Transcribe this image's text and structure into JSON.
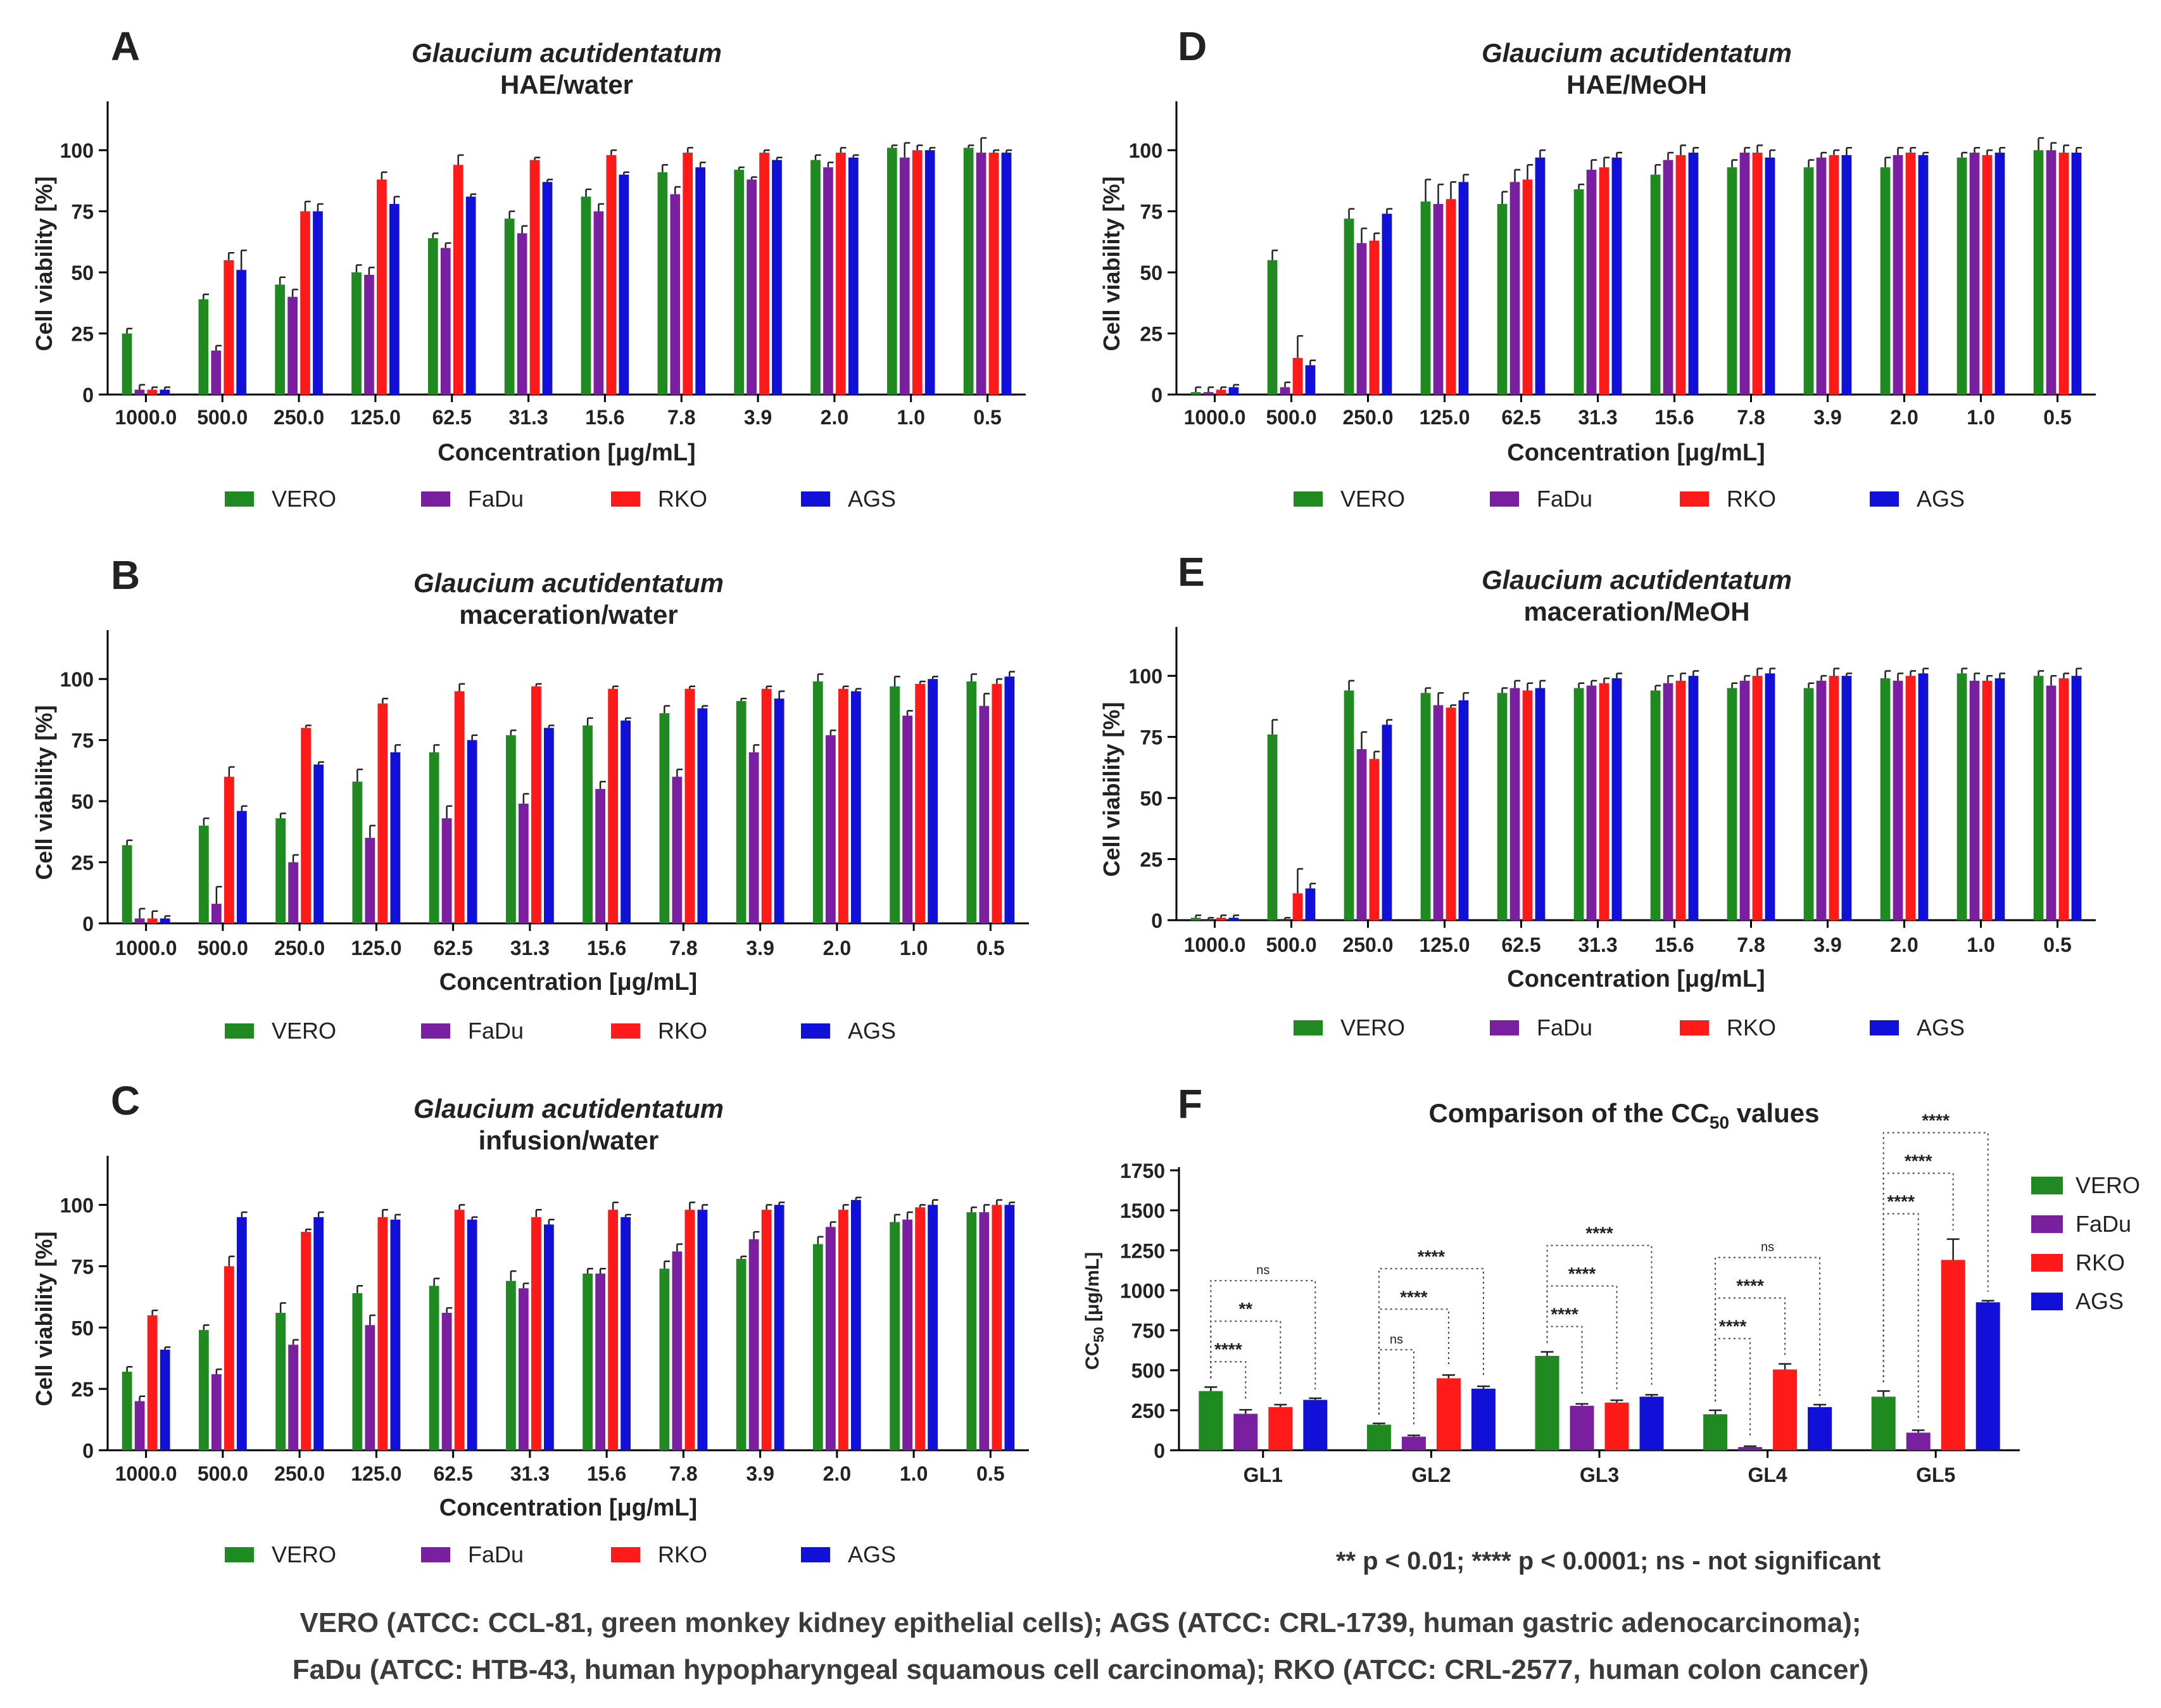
{
  "colors": {
    "VERO": "#1f8a1f",
    "FaDu": "#7a1fa0",
    "RKO": "#ff1a1a",
    "AGS": "#1010d8",
    "axis": "#000000",
    "text": "#222222"
  },
  "chart_data": [
    {
      "panel": "A",
      "type": "bar",
      "title": "Glaucium acutidentatum",
      "subtitle": "HAE/water",
      "xlabel": "Concentration [μg/mL]",
      "ylabel": "Cell viability [%]",
      "ylim": [
        0,
        120
      ],
      "yticks": [
        0,
        25,
        50,
        75,
        100
      ],
      "categories": [
        "1000.0",
        "500.0",
        "250.0",
        "125.0",
        "62.5",
        "31.3",
        "15.6",
        "7.8",
        "3.9",
        "2.0",
        "1.0",
        "0.5"
      ],
      "legend": [
        "VERO",
        "FaDu",
        "RKO",
        "AGS"
      ],
      "series": [
        {
          "name": "VERO",
          "values": [
            25,
            39,
            45,
            50,
            64,
            72,
            81,
            91,
            92,
            96,
            101,
            101
          ],
          "errors": [
            2,
            2,
            3,
            3,
            2,
            3,
            3,
            3,
            1,
            2,
            1,
            1
          ]
        },
        {
          "name": "FaDu",
          "values": [
            2,
            18,
            40,
            49,
            60,
            66,
            75,
            82,
            88,
            93,
            97,
            99
          ],
          "errors": [
            2,
            2,
            3,
            3,
            2,
            3,
            3,
            3,
            1,
            2,
            6,
            6
          ]
        },
        {
          "name": "RKO",
          "values": [
            2,
            55,
            75,
            88,
            94,
            96,
            98,
            99,
            99,
            99,
            100,
            99
          ],
          "errors": [
            1,
            3,
            4,
            3,
            4,
            1,
            2,
            2,
            1,
            2,
            2,
            1
          ]
        },
        {
          "name": "AGS",
          "values": [
            2,
            51,
            75,
            78,
            81,
            87,
            90,
            93,
            96,
            97,
            100,
            99
          ],
          "errors": [
            1,
            8,
            3,
            3,
            1,
            1,
            1,
            2,
            1,
            1,
            1,
            1
          ]
        }
      ]
    },
    {
      "panel": "B",
      "type": "bar",
      "title": "Glaucium acutidentatum",
      "subtitle": "maceration/water",
      "xlabel": "Concentration [μg/mL]",
      "ylabel": "Cell viability [%]",
      "ylim": [
        0,
        120
      ],
      "yticks": [
        0,
        25,
        50,
        75,
        100
      ],
      "categories": [
        "1000.0",
        "500.0",
        "250.0",
        "125.0",
        "62.5",
        "31.3",
        "15.6",
        "7.8",
        "3.9",
        "2.0",
        "1.0",
        "0.5"
      ],
      "legend": [
        "VERO",
        "FaDu",
        "RKO",
        "AGS"
      ],
      "series": [
        {
          "name": "VERO",
          "values": [
            32,
            40,
            43,
            58,
            70,
            77,
            81,
            86,
            91,
            99,
            97,
            99
          ],
          "errors": [
            2,
            3,
            2,
            5,
            3,
            2,
            3,
            3,
            1,
            3,
            4,
            3
          ]
        },
        {
          "name": "FaDu",
          "values": [
            2,
            8,
            25,
            35,
            43,
            49,
            55,
            60,
            70,
            77,
            85,
            89
          ],
          "errors": [
            4,
            7,
            3,
            5,
            5,
            4,
            3,
            3,
            3,
            2,
            2,
            5
          ]
        },
        {
          "name": "RKO",
          "values": [
            2,
            60,
            80,
            90,
            95,
            97,
            96,
            96,
            96,
            96,
            98,
            98
          ],
          "errors": [
            3,
            4,
            1,
            2,
            3,
            1,
            1,
            1,
            1,
            1,
            1,
            2
          ]
        },
        {
          "name": "AGS",
          "values": [
            2,
            46,
            65,
            70,
            75,
            80,
            83,
            88,
            92,
            95,
            100,
            101
          ],
          "errors": [
            1,
            2,
            1,
            3,
            2,
            1,
            1,
            1,
            3,
            1,
            1,
            2
          ]
        }
      ]
    },
    {
      "panel": "C",
      "type": "bar",
      "title": "Glaucium acutidentatum",
      "subtitle": "infusion/water",
      "xlabel": "Concentration [μg/mL]",
      "ylabel": "Cell viability [%]",
      "ylim": [
        0,
        120
      ],
      "yticks": [
        0,
        25,
        50,
        75,
        100
      ],
      "categories": [
        "1000.0",
        "500.0",
        "250.0",
        "125.0",
        "62.5",
        "31.3",
        "15.6",
        "7.8",
        "3.9",
        "2.0",
        "1.0",
        "0.5"
      ],
      "legend": [
        "VERO",
        "FaDu",
        "RKO",
        "AGS"
      ],
      "series": [
        {
          "name": "VERO",
          "values": [
            32,
            49,
            56,
            64,
            67,
            69,
            72,
            74,
            78,
            84,
            93,
            97
          ],
          "errors": [
            2,
            2,
            4,
            3,
            3,
            4,
            2,
            3,
            1,
            3,
            3,
            2
          ]
        },
        {
          "name": "FaDu",
          "values": [
            20,
            31,
            43,
            51,
            56,
            66,
            72,
            81,
            86,
            91,
            94,
            97
          ],
          "errors": [
            2,
            2,
            2,
            4,
            2,
            2,
            2,
            3,
            3,
            2,
            3,
            3
          ]
        },
        {
          "name": "RKO",
          "values": [
            55,
            75,
            89,
            95,
            98,
            95,
            98,
            98,
            98,
            98,
            99,
            100
          ],
          "errors": [
            2,
            4,
            1,
            3,
            2,
            3,
            3,
            3,
            2,
            2,
            1,
            2
          ]
        },
        {
          "name": "AGS",
          "values": [
            41,
            95,
            95,
            94,
            94,
            92,
            95,
            98,
            100,
            102,
            100,
            100
          ],
          "errors": [
            1,
            2,
            2,
            2,
            1,
            2,
            1,
            2,
            1,
            1,
            2,
            1
          ]
        }
      ]
    },
    {
      "panel": "D",
      "type": "bar",
      "title": "Glaucium acutidentatum",
      "subtitle": "HAE/MeOH",
      "xlabel": "Concentration [μg/mL]",
      "ylabel": "Cell viability [%]",
      "ylim": [
        0,
        120
      ],
      "yticks": [
        0,
        25,
        50,
        75,
        100
      ],
      "categories": [
        "1000.0",
        "500.0",
        "250.0",
        "125.0",
        "62.5",
        "31.3",
        "15.6",
        "7.8",
        "3.9",
        "2.0",
        "1.0",
        "0.5"
      ],
      "legend": [
        "VERO",
        "FaDu",
        "RKO",
        "AGS"
      ],
      "series": [
        {
          "name": "VERO",
          "values": [
            1,
            55,
            72,
            79,
            78,
            84,
            90,
            93,
            93,
            93,
            97,
            100
          ],
          "errors": [
            2,
            4,
            4,
            9,
            5,
            2,
            4,
            3,
            3,
            4,
            2,
            5
          ]
        },
        {
          "name": "FaDu",
          "values": [
            1,
            3,
            62,
            78,
            87,
            92,
            96,
            99,
            97,
            98,
            99,
            100
          ],
          "errors": [
            2,
            2,
            6,
            8,
            5,
            4,
            3,
            2,
            2,
            3,
            2,
            3
          ]
        },
        {
          "name": "RKO",
          "values": [
            2,
            15,
            63,
            80,
            88,
            93,
            98,
            99,
            98,
            99,
            98,
            99
          ],
          "errors": [
            1,
            9,
            3,
            7,
            6,
            4,
            4,
            3,
            2,
            2,
            2,
            3
          ]
        },
        {
          "name": "AGS",
          "values": [
            3,
            12,
            74,
            87,
            97,
            97,
            99,
            97,
            98,
            98,
            99,
            99
          ],
          "errors": [
            1,
            2,
            2,
            3,
            3,
            2,
            2,
            3,
            3,
            1,
            2,
            2
          ]
        }
      ]
    },
    {
      "panel": "E",
      "type": "bar",
      "title": "Glaucium acutidentatum",
      "subtitle": "maceration/MeOH",
      "xlabel": "Concentration [μg/mL]",
      "ylabel": "Cell viability [%]",
      "ylim": [
        0,
        120
      ],
      "yticks": [
        0,
        25,
        50,
        75,
        100
      ],
      "categories": [
        "1000.0",
        "500.0",
        "250.0",
        "125.0",
        "62.5",
        "31.3",
        "15.6",
        "7.8",
        "3.9",
        "2.0",
        "1.0",
        "0.5"
      ],
      "legend": [
        "VERO",
        "FaDu",
        "RKO",
        "AGS"
      ],
      "series": [
        {
          "name": "VERO",
          "values": [
            1,
            76,
            94,
            93,
            93,
            95,
            94,
            95,
            95,
            99,
            101,
            100
          ],
          "errors": [
            1,
            6,
            4,
            2,
            2,
            2,
            2,
            2,
            2,
            3,
            2,
            2
          ]
        },
        {
          "name": "FaDu",
          "values": [
            0,
            0,
            70,
            88,
            95,
            96,
            97,
            98,
            98,
            98,
            98,
            96
          ],
          "errors": [
            1,
            1,
            7,
            5,
            3,
            2,
            3,
            2,
            2,
            3,
            3,
            4
          ]
        },
        {
          "name": "RKO",
          "values": [
            1,
            11,
            66,
            87,
            94,
            97,
            98,
            100,
            100,
            100,
            98,
            99
          ],
          "errors": [
            1,
            10,
            3,
            1,
            3,
            2,
            3,
            3,
            3,
            2,
            2,
            2
          ]
        },
        {
          "name": "AGS",
          "values": [
            1,
            13,
            80,
            90,
            95,
            99,
            100,
            101,
            100,
            101,
            99,
            100
          ],
          "errors": [
            1,
            2,
            2,
            3,
            3,
            2,
            2,
            2,
            1,
            2,
            2,
            3
          ]
        }
      ]
    },
    {
      "panel": "F",
      "type": "bar",
      "title": "Comparison of the CC",
      "title_sub": "50",
      "title_tail": " values",
      "xlabel": "",
      "ylabel": "CC",
      "ylabel_sub": "50",
      "ylabel_tail": " [μg/mL]",
      "ylim": [
        0,
        1750
      ],
      "yticks": [
        0,
        250,
        500,
        750,
        1000,
        1250,
        1500,
        1750
      ],
      "categories": [
        "GL1",
        "GL2",
        "GL3",
        "GL4",
        "GL5"
      ],
      "legend": [
        "VERO",
        "FaDu",
        "RKO",
        "AGS"
      ],
      "series": [
        {
          "name": "VERO",
          "values": [
            370,
            160,
            590,
            225,
            335
          ],
          "errors": [
            25,
            8,
            25,
            25,
            35
          ]
        },
        {
          "name": "FaDu",
          "values": [
            228,
            85,
            278,
            20,
            110
          ],
          "errors": [
            25,
            8,
            12,
            5,
            15
          ]
        },
        {
          "name": "RKO",
          "values": [
            270,
            450,
            298,
            505,
            1190
          ],
          "errors": [
            15,
            20,
            15,
            35,
            130
          ]
        },
        {
          "name": "AGS",
          "values": [
            315,
            385,
            335,
            270,
            925
          ],
          "errors": [
            10,
            15,
            12,
            15,
            10
          ]
        }
      ],
      "significance": [
        {
          "group": "GL1",
          "from": "VERO",
          "to": "FaDu",
          "label": "****"
        },
        {
          "group": "GL1",
          "from": "VERO",
          "to": "RKO",
          "label": "**"
        },
        {
          "group": "GL1",
          "from": "VERO",
          "to": "AGS",
          "label": "ns"
        },
        {
          "group": "GL2",
          "from": "VERO",
          "to": "FaDu",
          "label": "ns"
        },
        {
          "group": "GL2",
          "from": "VERO",
          "to": "RKO",
          "label": "****"
        },
        {
          "group": "GL2",
          "from": "VERO",
          "to": "AGS",
          "label": "****"
        },
        {
          "group": "GL3",
          "from": "VERO",
          "to": "FaDu",
          "label": "****"
        },
        {
          "group": "GL3",
          "from": "VERO",
          "to": "RKO",
          "label": "****"
        },
        {
          "group": "GL3",
          "from": "VERO",
          "to": "AGS",
          "label": "****"
        },
        {
          "group": "GL4",
          "from": "VERO",
          "to": "FaDu",
          "label": "****"
        },
        {
          "group": "GL4",
          "from": "VERO",
          "to": "RKO",
          "label": "****"
        },
        {
          "group": "GL4",
          "from": "VERO",
          "to": "AGS",
          "label": "ns"
        },
        {
          "group": "GL5",
          "from": "VERO",
          "to": "FaDu",
          "label": "****"
        },
        {
          "group": "GL5",
          "from": "VERO",
          "to": "RKO",
          "label": "****"
        },
        {
          "group": "GL5",
          "from": "VERO",
          "to": "AGS",
          "label": "****"
        }
      ],
      "footnote": "** p < 0.01; **** p < 0.0001; ns - not significant"
    }
  ],
  "captions": {
    "line1": "VERO (ATCC: CCL-81, green monkey kidney epithelial cells); AGS (ATCC: CRL-1739, human gastric adenocarcinoma);",
    "line2": "FaDu (ATCC: HTB-43, human hypopharyngeal squamous cell carcinoma); RKO (ATCC: CRL-2577, human colon cancer)"
  }
}
